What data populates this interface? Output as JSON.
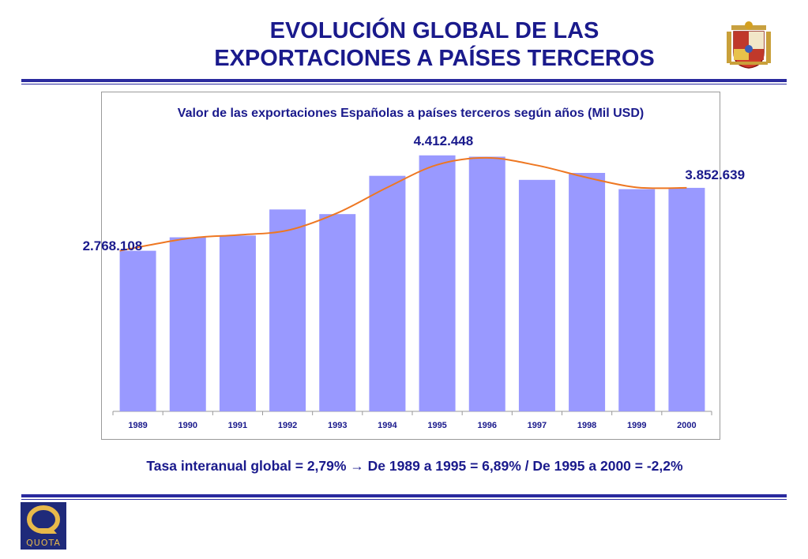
{
  "slide": {
    "title_line1": "EVOLUCIÓN GLOBAL DE LAS",
    "title_line2": "EXPORTACIONES A PAÍSES TERCEROS",
    "footnote": "Tasa interanual global = 2,79% → De 1989 a 1995 = 6,89% / De 1995 a 2000 = -2,2%",
    "logo_text": "QUOTA",
    "logo_icon": "quota-q-logo",
    "emblem_icon": "spain-coat-of-arms-icon"
  },
  "colors": {
    "title": "#1a1a8c",
    "rule": "#2a2a9e",
    "bar": "#9999ff",
    "trend": "#ee7722"
  },
  "chart_data": {
    "type": "bar",
    "title": "Valor de las exportaciones Españolas a países terceros según años (Mil USD)",
    "categories": [
      "1989",
      "1990",
      "1991",
      "1992",
      "1993",
      "1994",
      "1995",
      "1996",
      "1997",
      "1998",
      "1999",
      "2000"
    ],
    "series": [
      {
        "values": [
          2768108,
          3000000,
          3030000,
          3480000,
          3400000,
          4060000,
          4412448,
          4390000,
          3990000,
          4110000,
          3830000,
          3852639
        ]
      }
    ],
    "trendline": {
      "type": "smoothed-line",
      "values": [
        2768108,
        2980000,
        3040000,
        3120000,
        3420000,
        3860000,
        4250000,
        4370000,
        4240000,
        4030000,
        3860000,
        3852639
      ]
    },
    "ylim": [
      0,
      4600000
    ],
    "grid": false,
    "legend": "none",
    "data_labels": [
      {
        "category": "1989",
        "text": "2.768.108"
      },
      {
        "category": "1995",
        "text": "4.412.448"
      },
      {
        "category": "2000",
        "text": "3.852.639"
      }
    ]
  }
}
